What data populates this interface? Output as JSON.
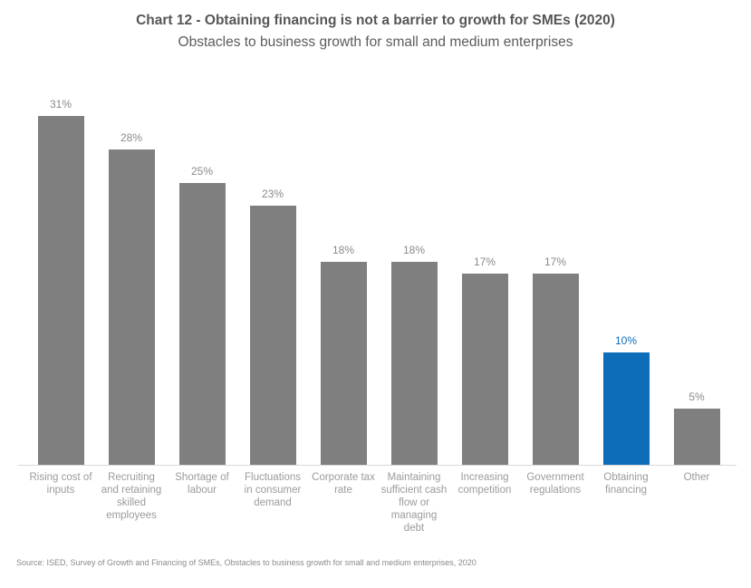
{
  "header": {
    "title": "Chart 12 - Obtaining financing is not a barrier to growth for SMEs (2020)",
    "subtitle": "Obstacles to business growth for small and medium enterprises"
  },
  "footer": {
    "source": "Source: ISED, Survey of Growth and Financing of SMEs, Obstacles to business growth for small and medium enterprises, 2020"
  },
  "colors": {
    "bar_default": "#7f7f7f",
    "bar_highlight": "#0d6db8",
    "value_label_default": "#8a8a8a",
    "value_label_highlight": "#0d6db8",
    "axis_line": "#d9d9d9"
  },
  "chart_data": {
    "type": "bar",
    "title": "Chart 12 - Obtaining financing is not a barrier to growth for SMEs (2020)",
    "subtitle": "Obstacles to business growth for small and medium enterprises",
    "categories": [
      "Rising cost of inputs",
      "Recruiting and retaining skilled employees",
      "Shortage of labour",
      "Fluctuations in consumer demand",
      "Corporate tax rate",
      "Maintaining sufficient cash flow or managing debt",
      "Increasing competition",
      "Government regulations",
      "Obtaining financing",
      "Other"
    ],
    "category_label_lines": [
      [
        "Rising cost of",
        "inputs"
      ],
      [
        "Recruiting",
        "and retaining",
        "skilled",
        "employees"
      ],
      [
        "Shortage of",
        "labour"
      ],
      [
        "Fluctuations",
        "in consumer",
        "demand"
      ],
      [
        "Corporate tax",
        "rate"
      ],
      [
        "Maintaining",
        "sufficient cash",
        "flow or",
        "managing",
        "debt"
      ],
      [
        "Increasing",
        "competition"
      ],
      [
        "Government",
        "regulations"
      ],
      [
        "Obtaining",
        "financing"
      ],
      [
        "Other"
      ]
    ],
    "values": [
      31,
      28,
      25,
      23,
      18,
      18,
      17,
      17,
      10,
      5
    ],
    "value_labels": [
      "31%",
      "28%",
      "25%",
      "23%",
      "18%",
      "18%",
      "17%",
      "17%",
      "10%",
      "5%"
    ],
    "highlight_index": 8,
    "xlabel": "",
    "ylabel": "",
    "ylim": [
      0,
      33
    ],
    "grid": false,
    "legend": "none",
    "value_label_position": "above",
    "unit": "%"
  }
}
